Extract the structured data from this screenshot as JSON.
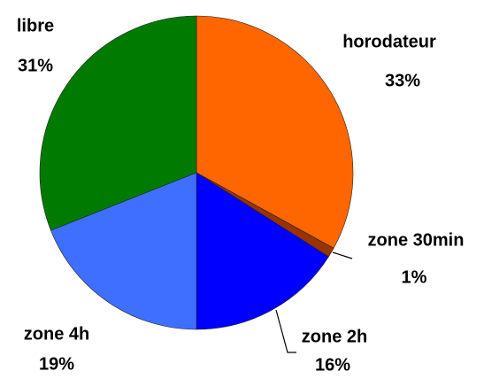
{
  "chart_data": {
    "type": "pie",
    "categories": [
      "horodateur",
      "zone 30min",
      "zone 2h",
      "zone 4h",
      "libre"
    ],
    "values": [
      33,
      1,
      16,
      19,
      31
    ],
    "value_labels": [
      "33%",
      "1%",
      "16%",
      "19%",
      "31%"
    ],
    "colors": [
      "#ff6600",
      "#993300",
      "#0000ff",
      "#3f6fff",
      "#007a00"
    ]
  }
}
